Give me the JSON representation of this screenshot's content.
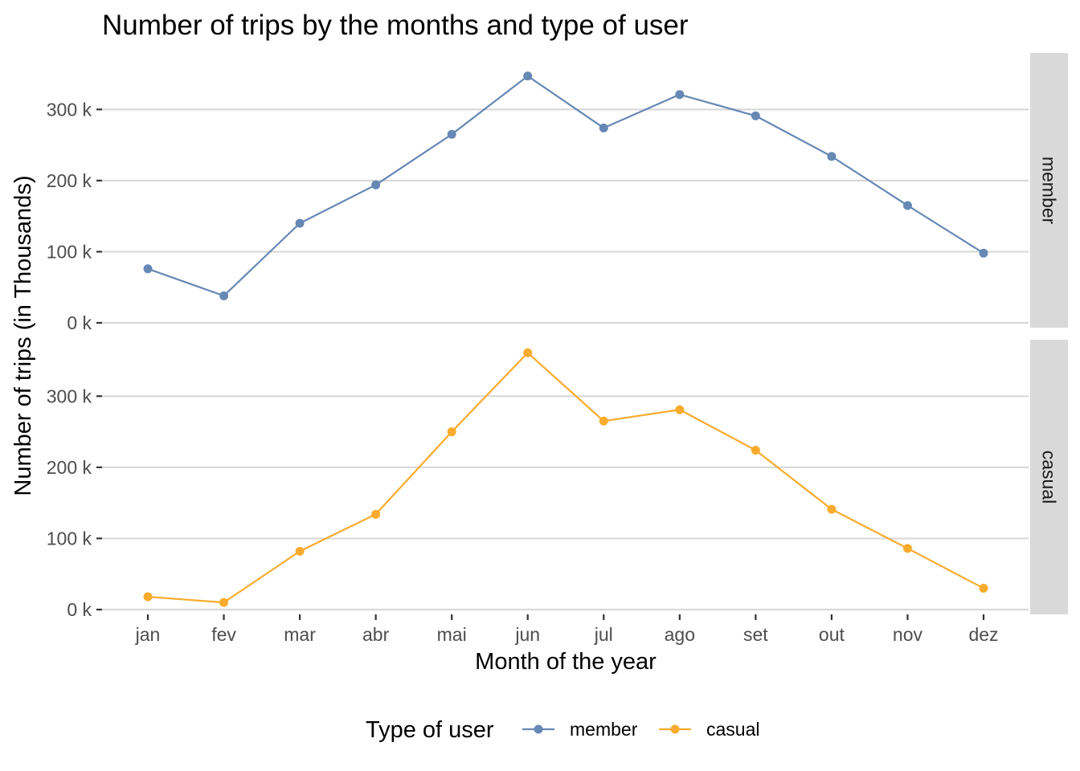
{
  "chart_data": {
    "type": "line",
    "title": "Number of trips by the months and type of user",
    "xlabel": "Month of the year",
    "ylabel": "Number of trips (in Thousands)",
    "categories": [
      "jan",
      "fev",
      "mar",
      "abr",
      "mai",
      "jun",
      "jul",
      "ago",
      "set",
      "out",
      "nov",
      "dez"
    ],
    "ylim": [
      0,
      350
    ],
    "y_ticks": [
      0,
      100,
      200,
      300
    ],
    "y_tick_labels": [
      "0 k",
      "100 k",
      "200 k",
      "300 k"
    ],
    "facet_layout": "stacked rows, one panel per type of user, shared x axis",
    "grid": "horizontal major gridlines only",
    "legend": {
      "title": "Type of user",
      "position": "bottom"
    },
    "series": [
      {
        "name": "member",
        "color": "#6688b4",
        "values": [
          76,
          38,
          140,
          194,
          265,
          347,
          274,
          321,
          291,
          234,
          165,
          98
        ]
      },
      {
        "name": "casual",
        "color": "#f9ab2d",
        "values": [
          18,
          10,
          82,
          134,
          250,
          361,
          265,
          281,
          224,
          141,
          86,
          30
        ]
      }
    ]
  }
}
